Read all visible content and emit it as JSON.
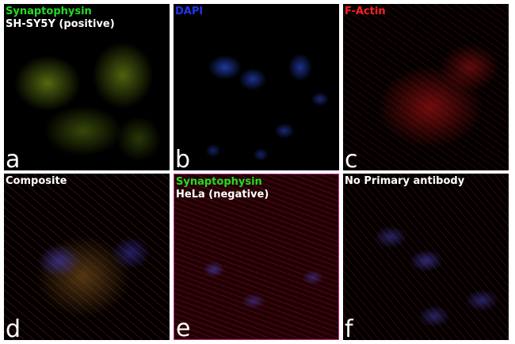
{
  "panels": [
    {
      "letter": "a",
      "label1": "Synaptophysin",
      "label2": "SH-SY5Y (positive)",
      "label1_color": "#22dd22",
      "label2_color": "#ffffff"
    },
    {
      "letter": "b",
      "label1": "DAPI",
      "label1_color": "#2233ee"
    },
    {
      "letter": "c",
      "label1": "F-Actin",
      "label1_color": "#ff2020"
    },
    {
      "letter": "d",
      "label1": "Composite",
      "label1_color": "#ffffff"
    },
    {
      "letter": "e",
      "label1": "Synaptophysin",
      "label2": "HeLa (negative)",
      "label1_color": "#22dd22",
      "label2_color": "#ffffff"
    },
    {
      "letter": "f",
      "label1": "No Primary antibody",
      "label1_color": "#ffffff"
    }
  ]
}
